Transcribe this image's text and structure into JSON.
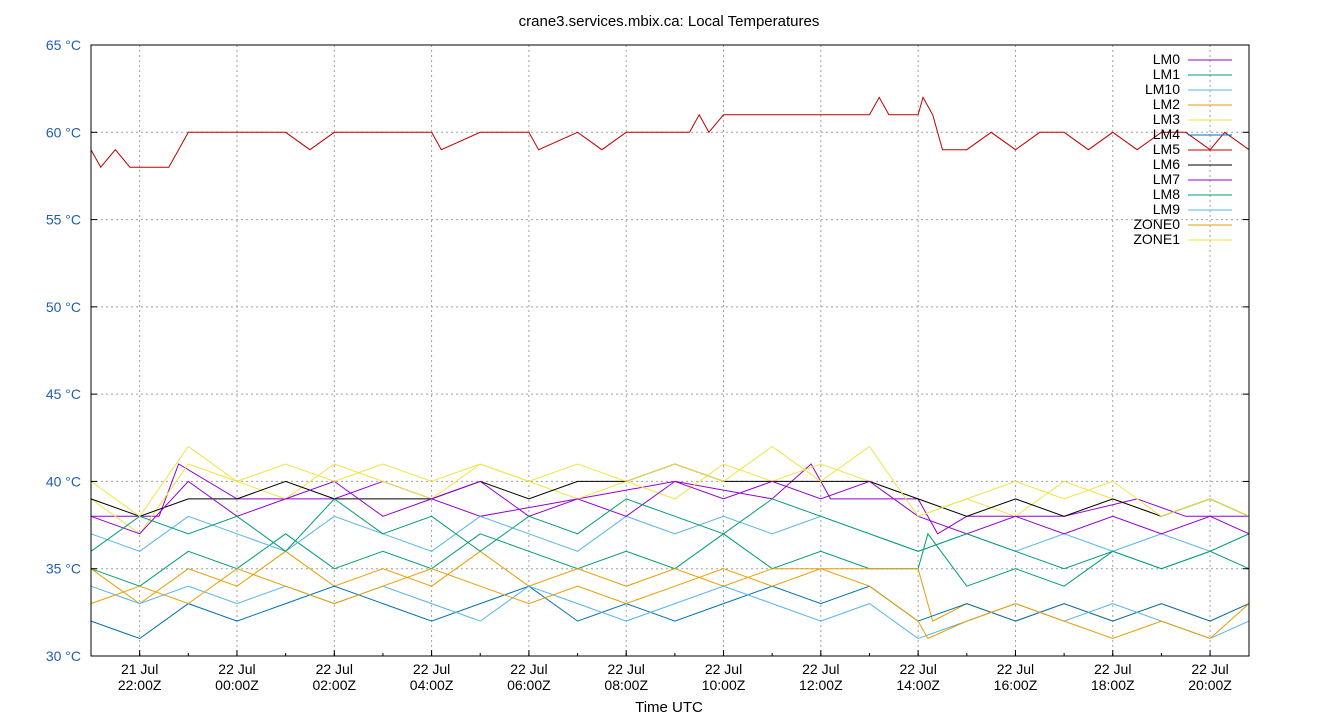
{
  "chart_data": {
    "type": "line",
    "title": "crane3.services.mbix.ca: Local Temperatures",
    "xlabel": "Time UTC",
    "ylabel": "",
    "x_unit": "hours since 21 Jul 21:00Z",
    "xlim": [
      0,
      23.8
    ],
    "ylim": [
      30,
      65
    ],
    "y_ticks": [
      {
        "value": 30,
        "label": "30 °C"
      },
      {
        "value": 35,
        "label": "35 °C"
      },
      {
        "value": 40,
        "label": "40 °C"
      },
      {
        "value": 45,
        "label": "45 °C"
      },
      {
        "value": 50,
        "label": "50 °C"
      },
      {
        "value": 55,
        "label": "55 °C"
      },
      {
        "value": 60,
        "label": "60 °C"
      },
      {
        "value": 65,
        "label": "65 °C"
      }
    ],
    "x_ticks": [
      {
        "value": 1,
        "date": "21 Jul",
        "time": "22:00Z"
      },
      {
        "value": 3,
        "date": "22 Jul",
        "time": "00:00Z"
      },
      {
        "value": 5,
        "date": "22 Jul",
        "time": "02:00Z"
      },
      {
        "value": 7,
        "date": "22 Jul",
        "time": "04:00Z"
      },
      {
        "value": 9,
        "date": "22 Jul",
        "time": "06:00Z"
      },
      {
        "value": 11,
        "date": "22 Jul",
        "time": "08:00Z"
      },
      {
        "value": 13,
        "date": "22 Jul",
        "time": "10:00Z"
      },
      {
        "value": 15,
        "date": "22 Jul",
        "time": "12:00Z"
      },
      {
        "value": 17,
        "date": "22 Jul",
        "time": "14:00Z"
      },
      {
        "value": 19,
        "date": "22 Jul",
        "time": "16:00Z"
      },
      {
        "value": 21,
        "date": "22 Jul",
        "time": "18:00Z"
      },
      {
        "value": 23,
        "date": "22 Jul",
        "time": "20:00Z"
      }
    ],
    "grid": true,
    "legend_position": "top-right",
    "series": [
      {
        "name": "LM0",
        "color": "#9400d3",
        "x": [
          0,
          1.4,
          1.8,
          3,
          5,
          6,
          8,
          10,
          12,
          14,
          14.8,
          15.2,
          17,
          17.4,
          18,
          20,
          21.5,
          22.5,
          23.8
        ],
        "values": [
          38,
          38,
          41,
          39,
          39,
          40,
          38,
          39,
          40,
          39,
          41,
          39,
          39,
          37,
          38,
          38,
          39,
          38,
          38
        ]
      },
      {
        "name": "LM1",
        "color": "#009e73",
        "x": [
          0,
          1,
          2,
          3,
          4,
          5,
          6,
          7,
          8,
          9,
          10,
          11,
          12,
          13,
          14,
          15,
          16,
          17,
          17.2,
          18,
          19,
          20,
          21,
          22,
          23,
          23.8
        ],
        "values": [
          35,
          34,
          36,
          35,
          37,
          35,
          36,
          35,
          37,
          36,
          35,
          36,
          35,
          37,
          35,
          36,
          35,
          35,
          37,
          34,
          35,
          34,
          36,
          35,
          36,
          35
        ]
      },
      {
        "name": "LM10",
        "color": "#56b4e9",
        "x": [
          0,
          1,
          2,
          3,
          4,
          5,
          6,
          7,
          8,
          9,
          10,
          11,
          12,
          13,
          14,
          15,
          16,
          17,
          18,
          19,
          20,
          21,
          22,
          23,
          23.8
        ],
        "values": [
          37,
          36,
          38,
          37,
          36,
          38,
          37,
          36,
          38,
          37,
          36,
          38,
          37,
          38,
          37,
          38,
          37,
          36,
          37,
          36,
          37,
          36,
          37,
          36,
          37
        ]
      },
      {
        "name": "LM2",
        "color": "#e69f00",
        "x": [
          0,
          1,
          2,
          3,
          4,
          5,
          6,
          7,
          8,
          9,
          10,
          11,
          12,
          13,
          14,
          15,
          16,
          17,
          17.3,
          18,
          19,
          20,
          21,
          22,
          23,
          23.8
        ],
        "values": [
          35,
          33,
          35,
          34,
          36,
          34,
          35,
          34,
          36,
          34,
          35,
          34,
          35,
          34,
          35,
          35,
          35,
          35,
          32,
          33,
          32,
          33,
          32,
          33,
          32,
          33
        ]
      },
      {
        "name": "LM3",
        "color": "#f0e442",
        "x": [
          0,
          1,
          2,
          3,
          4,
          5,
          6,
          7,
          8,
          9,
          10,
          11,
          12,
          13,
          14,
          15,
          16,
          17,
          18,
          19,
          20,
          21,
          22,
          23,
          23.8
        ],
        "values": [
          39,
          37,
          41,
          40,
          39,
          41,
          40,
          39,
          41,
          40,
          39,
          40,
          39,
          41,
          40,
          41,
          40,
          38,
          39,
          38,
          40,
          39,
          38,
          39,
          38
        ]
      },
      {
        "name": "LM4",
        "color": "#0072b2",
        "x": [
          0,
          1,
          2,
          3,
          4,
          5,
          6,
          7,
          8,
          9,
          10,
          11,
          12,
          13,
          14,
          15,
          16,
          17,
          18,
          19,
          20,
          21,
          22,
          23,
          23.8
        ],
        "values": [
          32,
          31,
          33,
          32,
          33,
          34,
          33,
          32,
          33,
          34,
          32,
          33,
          32,
          33,
          34,
          33,
          34,
          32,
          33,
          32,
          33,
          32,
          33,
          32,
          33
        ]
      },
      {
        "name": "LM5",
        "color": "#c00000",
        "x": [
          0,
          0.2,
          0.5,
          0.8,
          1.2,
          1.6,
          1.8,
          2,
          3,
          4,
          4.5,
          5,
          6,
          6.5,
          7,
          7.2,
          8,
          9,
          9.2,
          10,
          10.5,
          11,
          12,
          12.3,
          12.5,
          12.7,
          13,
          14,
          15,
          16,
          16.2,
          16.4,
          17,
          17.1,
          17.3,
          17.5,
          18,
          18.5,
          19,
          19.5,
          20,
          20.5,
          21,
          21.5,
          22,
          22.5,
          23,
          23.3,
          23.8
        ],
        "values": [
          59,
          58,
          59,
          58,
          58,
          58,
          59,
          60,
          60,
          60,
          59,
          60,
          60,
          60,
          60,
          59,
          60,
          60,
          59,
          60,
          59,
          60,
          60,
          60,
          61,
          60,
          61,
          61,
          61,
          61,
          62,
          61,
          61,
          62,
          61,
          59,
          59,
          60,
          59,
          60,
          60,
          59,
          60,
          59,
          60,
          60,
          59,
          60,
          59
        ]
      },
      {
        "name": "LM6",
        "color": "#000000",
        "x": [
          0,
          1,
          2,
          3,
          4,
          5,
          6,
          7,
          8,
          9,
          10,
          11,
          12,
          13,
          14,
          15,
          16,
          17,
          18,
          19,
          20,
          21,
          22,
          23,
          23.8
        ],
        "values": [
          39,
          38,
          39,
          39,
          40,
          39,
          39,
          39,
          40,
          39,
          40,
          40,
          41,
          40,
          40,
          40,
          40,
          39,
          38,
          39,
          38,
          39,
          38,
          39,
          38
        ]
      },
      {
        "name": "LM7",
        "color": "#9400d3",
        "x": [
          0,
          1,
          2,
          3,
          4,
          5,
          6,
          7,
          8,
          9,
          10,
          11,
          12,
          13,
          14,
          15,
          16,
          17,
          18,
          19,
          20,
          21,
          22,
          23,
          23.8
        ],
        "values": [
          38,
          37,
          40,
          38,
          39,
          40,
          38,
          39,
          40,
          38,
          39,
          38,
          40,
          39,
          40,
          39,
          40,
          38,
          37,
          38,
          37,
          38,
          37,
          38,
          37
        ]
      },
      {
        "name": "LM8",
        "color": "#009e73",
        "x": [
          0,
          1,
          2,
          3,
          4,
          5,
          6,
          7,
          8,
          9,
          10,
          11,
          12,
          13,
          14,
          15,
          16,
          17,
          18,
          19,
          20,
          21,
          22,
          23,
          23.8
        ],
        "values": [
          36,
          38,
          37,
          38,
          36,
          39,
          37,
          38,
          36,
          38,
          37,
          39,
          38,
          37,
          39,
          38,
          37,
          36,
          37,
          36,
          35,
          36,
          35,
          36,
          37
        ]
      },
      {
        "name": "LM9",
        "color": "#56b4e9",
        "x": [
          0,
          1,
          2,
          3,
          4,
          5,
          6,
          7,
          8,
          9,
          10,
          11,
          12,
          13,
          14,
          15,
          16,
          17,
          18,
          19,
          20,
          21,
          22,
          23,
          23.8
        ],
        "values": [
          34,
          33,
          34,
          33,
          34,
          33,
          34,
          33,
          32,
          34,
          33,
          32,
          33,
          34,
          33,
          32,
          33,
          31,
          32,
          33,
          32,
          33,
          32,
          31,
          32
        ]
      },
      {
        "name": "ZONE0",
        "color": "#e69f00",
        "x": [
          0,
          1,
          2,
          3,
          4,
          5,
          6,
          7,
          8,
          9,
          10,
          11,
          12,
          13,
          14,
          15,
          16,
          17,
          17.2,
          18,
          19,
          20,
          21,
          22,
          23,
          23.8
        ],
        "values": [
          33,
          34,
          33,
          35,
          34,
          33,
          34,
          35,
          34,
          33,
          34,
          33,
          34,
          35,
          34,
          35,
          34,
          32,
          31,
          32,
          33,
          32,
          31,
          32,
          31,
          33
        ]
      },
      {
        "name": "ZONE1",
        "color": "#f0e442",
        "x": [
          0,
          1,
          2,
          3,
          4,
          5,
          6,
          7,
          8,
          9,
          10,
          11,
          12,
          13,
          14,
          15,
          16,
          17,
          18,
          19,
          20,
          21,
          22,
          23,
          23.8
        ],
        "values": [
          40,
          38,
          42,
          40,
          41,
          40,
          41,
          40,
          41,
          40,
          41,
          40,
          41,
          40,
          42,
          40,
          42,
          38,
          39,
          40,
          39,
          40,
          38,
          39,
          38
        ]
      }
    ]
  }
}
